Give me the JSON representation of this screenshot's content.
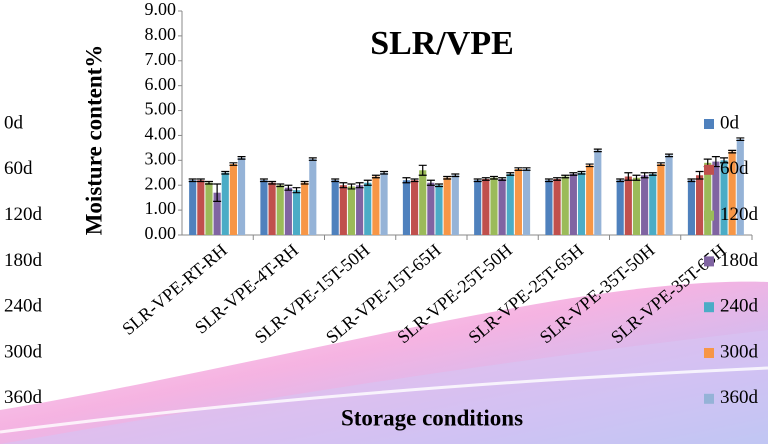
{
  "chart_data": {
    "type": "bar",
    "title": "SLR/VPE",
    "y_label": "Moisture content%",
    "x_label": "Storage conditions",
    "categories": [
      "SLR-VPE-RT-RH",
      "SLR-VPE-4T-RH",
      "SLR-VPE-15T-50H",
      "SLR-VPE-15T-65H",
      "SLR-VPE-25T-50H",
      "SLR-VPE-25T-65H",
      "SLR-VPE-35T-50H",
      "SLR-VPE-35T-65H"
    ],
    "series": [
      {
        "name": "0d",
        "color": "#4f81bd",
        "values": [
          2.2,
          2.2,
          2.2,
          2.2,
          2.2,
          2.2,
          2.2,
          2.2
        ],
        "errors": [
          0.05,
          0.05,
          0.05,
          0.1,
          0.05,
          0.05,
          0.05,
          0.05
        ]
      },
      {
        "name": "60d",
        "color": "#c0504d",
        "values": [
          2.2,
          2.1,
          2.0,
          2.2,
          2.25,
          2.25,
          2.35,
          2.4
        ],
        "errors": [
          0.05,
          0.05,
          0.1,
          0.05,
          0.05,
          0.05,
          0.15,
          0.15
        ]
      },
      {
        "name": "120d",
        "color": "#9bbb59",
        "values": [
          2.1,
          2.0,
          1.95,
          2.6,
          2.3,
          2.35,
          2.3,
          2.9
        ],
        "errors": [
          0.05,
          0.05,
          0.1,
          0.2,
          0.05,
          0.05,
          0.1,
          0.15
        ]
      },
      {
        "name": "180d",
        "color": "#8064a2",
        "values": [
          1.7,
          1.9,
          2.0,
          2.1,
          2.25,
          2.45,
          2.4,
          2.95
        ],
        "errors": [
          0.35,
          0.1,
          0.1,
          0.1,
          0.05,
          0.05,
          0.1,
          0.2
        ]
      },
      {
        "name": "240d",
        "color": "#4bacc6",
        "values": [
          2.5,
          1.8,
          2.1,
          2.0,
          2.45,
          2.5,
          2.45,
          3.0
        ],
        "errors": [
          0.05,
          0.1,
          0.1,
          0.05,
          0.05,
          0.05,
          0.05,
          0.1
        ]
      },
      {
        "name": "300d",
        "color": "#f79646",
        "values": [
          2.85,
          2.1,
          2.35,
          2.3,
          2.65,
          2.8,
          2.85,
          3.35
        ],
        "errors": [
          0.05,
          0.05,
          0.05,
          0.05,
          0.05,
          0.05,
          0.05,
          0.05
        ]
      },
      {
        "name": "360d",
        "color": "#95b3d7",
        "values": [
          3.1,
          3.05,
          2.5,
          2.4,
          2.65,
          3.4,
          3.2,
          3.85
        ],
        "errors": [
          0.05,
          0.05,
          0.05,
          0.05,
          0.05,
          0.05,
          0.05,
          0.05
        ]
      }
    ],
    "ylim": [
      0,
      9
    ],
    "yticks": [
      {
        "value": 0,
        "label": "0.00"
      },
      {
        "value": 1,
        "label": "1.00"
      },
      {
        "value": 2,
        "label": "2.00"
      },
      {
        "value": 3,
        "label": "3.00"
      },
      {
        "value": 4,
        "label": "4.00"
      },
      {
        "value": 5,
        "label": "5.00"
      },
      {
        "value": 6,
        "label": "6.00"
      },
      {
        "value": 7,
        "label": "7.00"
      },
      {
        "value": 8,
        "label": "8.00"
      },
      {
        "value": 9,
        "label": "9.00"
      }
    ],
    "legend": "right"
  }
}
